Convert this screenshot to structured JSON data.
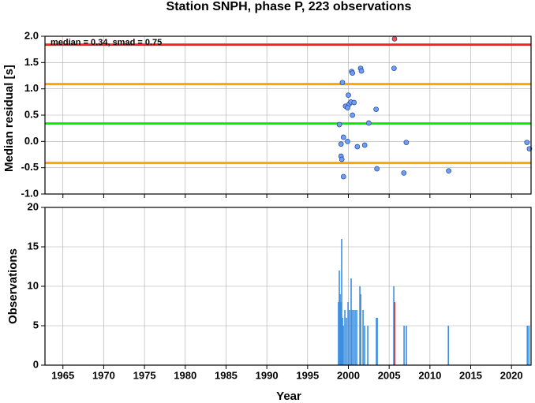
{
  "chart_data": [
    {
      "type": "scatter",
      "title": "Station SNPH, phase P, 223 observations",
      "ylabel": "Median residual [s]",
      "annotation": "median = 0.34, smad = 0.75",
      "xlim": [
        1962.8,
        2022.4
      ],
      "xticks": [
        1965,
        1970,
        1975,
        1980,
        1985,
        1990,
        1995,
        2000,
        2005,
        2010,
        2015,
        2020
      ],
      "ylim": [
        -1.0,
        2.0
      ],
      "yticks": [
        {
          "value": -1,
          "label": "-1.0"
        },
        {
          "value": -0.5,
          "label": "-0.5"
        },
        {
          "value": 0,
          "label": "0.0"
        },
        {
          "value": 0.5,
          "label": "0.5"
        },
        {
          "value": 1,
          "label": "1.0"
        },
        {
          "value": 1.5,
          "label": "1.5"
        },
        {
          "value": 2,
          "label": "2.0"
        }
      ],
      "grid": true,
      "hlines": [
        {
          "value": 1.84,
          "color": "#ff2020"
        },
        {
          "value": 1.09,
          "color": "#ffa500"
        },
        {
          "value": 0.34,
          "color": "#00ee00"
        },
        {
          "value": -0.41,
          "color": "#ffa500"
        }
      ],
      "series": [
        {
          "color": "#6f9ff0",
          "x": [
            1999.27,
            1998.9,
            1999.1,
            1999.4,
            1999.1,
            1999.2,
            1999.4,
            1999.65,
            2000.0,
            2000.1,
            1999.9,
            1999.9,
            2000.3,
            2000.4,
            2000.5,
            2000.7,
            2000.5,
            2001.1,
            2001.5,
            2001.6,
            2002.0,
            2002.5,
            2003.4,
            2003.5,
            2005.6,
            2006.8,
            2007.1,
            2012.3,
            2021.9,
            2022.2
          ],
          "values": [
            1.12,
            0.32,
            -0.05,
            0.08,
            -0.28,
            -0.34,
            -0.67,
            0.67,
            0.88,
            0.71,
            0.64,
            0.0,
            0.75,
            1.33,
            1.3,
            0.74,
            0.5,
            -0.1,
            1.39,
            1.34,
            -0.07,
            0.35,
            0.61,
            -0.52,
            1.39,
            -0.6,
            -0.02,
            -0.56,
            -0.02,
            -0.14
          ]
        },
        {
          "color": "#f05050",
          "x": [
            2005.66
          ],
          "values": [
            1.95
          ]
        }
      ]
    },
    {
      "type": "bar",
      "ylabel": "Observations",
      "xlabel": "Year",
      "xlim": [
        1962.8,
        2022.4
      ],
      "xticks": [
        1965,
        1970,
        1975,
        1980,
        1985,
        1990,
        1995,
        2000,
        2005,
        2010,
        2015,
        2020
      ],
      "ylim": [
        0,
        20
      ],
      "yticks": [
        0,
        5,
        10,
        15,
        20
      ],
      "grid": true,
      "series": [
        {
          "color": "#3d8fe0",
          "x": [
            1998.79,
            1998.89,
            1998.99,
            1999.09,
            1999.18,
            1999.28,
            1999.38,
            1999.57,
            1999.76,
            1999.96,
            2000.15,
            2000.34,
            2000.44,
            2000.64,
            2000.83,
            2001.02,
            2001.41,
            2001.51,
            2001.8,
            2001.99,
            2002.38,
            2003.44,
            2003.54,
            2005.57,
            2006.83,
            2007.12,
            2012.26,
            2021.94,
            2022.13
          ],
          "values": [
            8,
            12,
            9,
            8,
            16,
            6,
            5,
            7,
            6,
            8,
            7,
            11,
            7,
            7,
            7,
            7,
            10,
            9,
            7,
            5,
            5,
            6,
            6,
            10,
            5,
            5,
            5,
            5,
            5
          ]
        },
        {
          "color": "#e03030",
          "x": [
            2005.67
          ],
          "values": [
            8
          ]
        }
      ]
    }
  ]
}
